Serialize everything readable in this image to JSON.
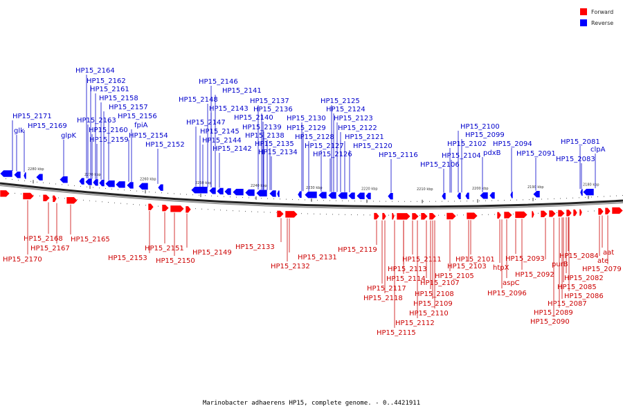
{
  "legend": {
    "forward_label": "Forward",
    "reverse_label": "Reverse",
    "forward_color": "#ff0000",
    "reverse_color": "#0000ff"
  },
  "caption": "Marinobacter adhaerens HP15, complete genome. - 0..4421911",
  "scale_ticks": [
    "2280 kbp",
    "2270 kbp",
    "2260 kbp",
    "2250 kbp",
    "2240 kbp",
    "2230 kbp",
    "2220 kbp",
    "2210 kbp",
    "2200 kbp",
    "2190 kbp",
    "2180 kbp"
  ],
  "reverse_labels": [
    "HP15_2164",
    "HP15_2162",
    "HP15_2161",
    "HP15_2158",
    "HP15_2157",
    "HP15_2156",
    "HP15_2163",
    "HP15_2160",
    "HP15_2159",
    "fpiA",
    "HP15_2154",
    "HP15_2152",
    "HP15_2171",
    "HP15_2169",
    "glk",
    "glpK",
    "HP15_2146",
    "HP15_2141",
    "HP15_2148",
    "HP15_2143",
    "HP15_2147",
    "HP15_2145",
    "HP15_2144",
    "HP15_2142",
    "HP15_2137",
    "HP15_2136",
    "HP15_2140",
    "HP15_2139",
    "HP15_2138",
    "HP15_2135",
    "HP15_2134",
    "HP15_2125",
    "HP15_2124",
    "HP15_2130",
    "HP15_2123",
    "HP15_2129",
    "HP15_2122",
    "HP15_2128",
    "HP15_2121",
    "HP15_2127",
    "HP15_2120",
    "HP15_2126",
    "HP15_2116",
    "HP15_2100",
    "HP15_2099",
    "HP15_2102",
    "HP15_2094",
    "HP15_2104",
    "pdxB",
    "HP15_2106",
    "HP15_2091",
    "HP15_2081",
    "clpA",
    "HP15_2083"
  ],
  "forward_labels": [
    "HP15_2168",
    "HP15_2167",
    "HP15_2165",
    "HP15_2170",
    "HP15_2151",
    "HP15_2153",
    "HP15_2150",
    "HP15_2149",
    "HP15_2133",
    "HP15_2131",
    "HP15_2132",
    "HP15_2119",
    "HP15_2111",
    "HP15_2113",
    "HP15_2114",
    "HP15_2117",
    "HP15_2118",
    "HP15_2107",
    "HP15_2108",
    "HP15_2109",
    "HP15_2110",
    "HP15_2112",
    "HP15_2115",
    "HP15_2105",
    "HP15_2103",
    "HP15_2101",
    "htpX",
    "aspC",
    "HP15_2096",
    "HP15_2093",
    "HP15_2092",
    "purB",
    "HP15_2084",
    "HP15_2082",
    "HP15_2085",
    "HP15_2086",
    "HP15_2087",
    "HP15_2089",
    "HP15_2090",
    "aat",
    "ate",
    "HP15_2079"
  ]
}
